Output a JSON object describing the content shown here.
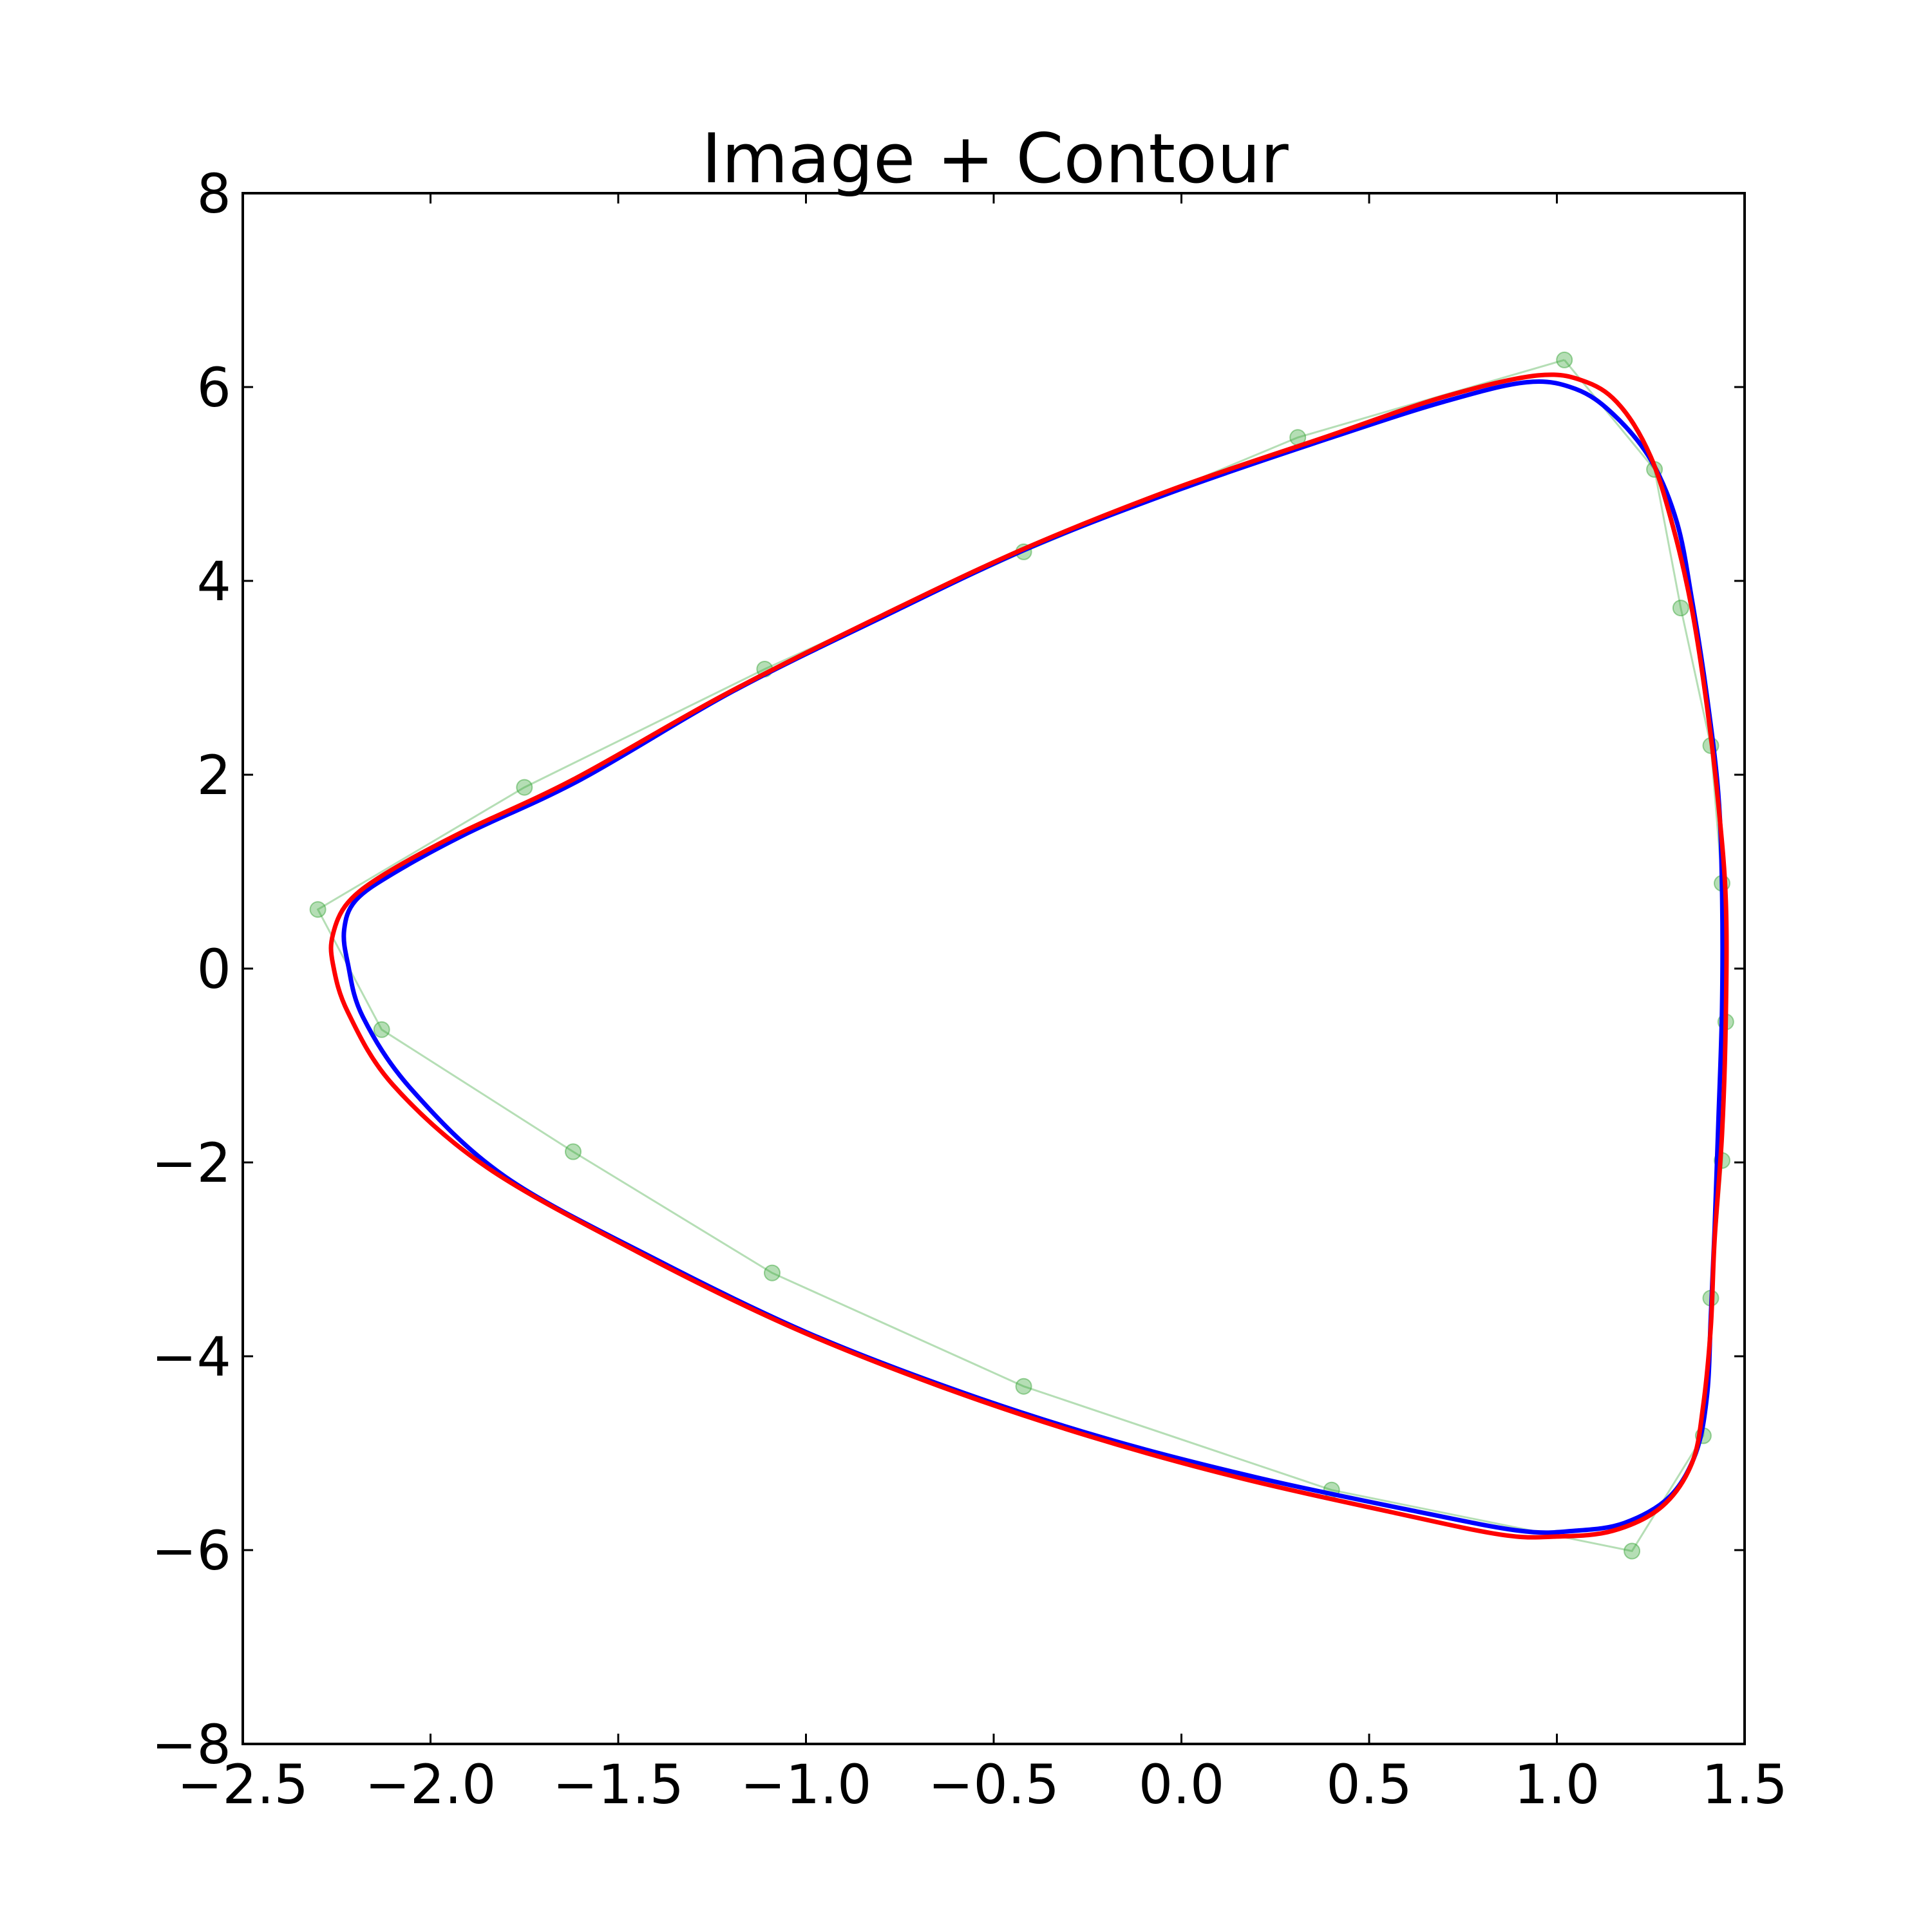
{
  "chart_data": {
    "type": "line",
    "title": "Image + Contour",
    "xlabel": "",
    "ylabel": "",
    "xlim": [
      -2.5,
      1.5
    ],
    "ylim": [
      -8,
      8
    ],
    "x_ticks": [
      -2.5,
      -2.0,
      -1.5,
      -1.0,
      -0.5,
      0.0,
      0.5,
      1.0,
      1.5
    ],
    "x_tick_labels": [
      "−2.5",
      "−2.0",
      "−1.5",
      "−1.0",
      "−0.5",
      "0.0",
      "0.5",
      "1.0",
      "1.5"
    ],
    "y_ticks": [
      8,
      6,
      4,
      2,
      0,
      -2,
      -4,
      -6,
      -8
    ],
    "y_tick_labels": [
      "8",
      "6",
      "4",
      "2",
      "0",
      "−2",
      "−4",
      "−6",
      "−8"
    ],
    "grid": false,
    "series": [
      {
        "color": "#2ca02c",
        "style": "polyline-with-markers",
        "closed": true,
        "points": [
          [
            1.02,
            6.28
          ],
          [
            1.26,
            5.15
          ],
          [
            1.33,
            3.72
          ],
          [
            1.41,
            2.3
          ],
          [
            1.44,
            0.88
          ],
          [
            1.45,
            -0.55
          ],
          [
            1.44,
            -1.98
          ],
          [
            1.41,
            -3.4
          ],
          [
            1.39,
            -4.82
          ],
          [
            1.2,
            -6.01
          ],
          [
            0.4,
            -5.38
          ],
          [
            -0.42,
            -4.31
          ],
          [
            -1.09,
            -3.14
          ],
          [
            -1.62,
            -1.89
          ],
          [
            -2.13,
            -0.63
          ],
          [
            -2.3,
            0.61
          ],
          [
            -1.75,
            1.87
          ],
          [
            -1.11,
            3.09
          ],
          [
            -0.42,
            4.3
          ],
          [
            0.31,
            5.48
          ]
        ]
      },
      {
        "color": "#0000ff",
        "style": "smooth-line",
        "closed": true,
        "points": [
          [
            0.92,
            6.05
          ],
          [
            1.05,
            5.98
          ],
          [
            1.15,
            5.72
          ],
          [
            1.25,
            5.25
          ],
          [
            1.32,
            4.6
          ],
          [
            1.36,
            3.8
          ],
          [
            1.4,
            2.8
          ],
          [
            1.43,
            1.8
          ],
          [
            1.44,
            0.8
          ],
          [
            1.44,
            -0.4
          ],
          [
            1.43,
            -1.6
          ],
          [
            1.42,
            -2.7
          ],
          [
            1.41,
            -3.6
          ],
          [
            1.4,
            -4.4
          ],
          [
            1.37,
            -5.0
          ],
          [
            1.3,
            -5.45
          ],
          [
            1.18,
            -5.72
          ],
          [
            1.05,
            -5.8
          ],
          [
            0.9,
            -5.8
          ],
          [
            0.6,
            -5.58
          ],
          [
            0.2,
            -5.25
          ],
          [
            -0.2,
            -4.85
          ],
          [
            -0.6,
            -4.35
          ],
          [
            -1.0,
            -3.75
          ],
          [
            -1.4,
            -3.0
          ],
          [
            -1.8,
            -2.15
          ],
          [
            -2.05,
            -1.25
          ],
          [
            -2.18,
            -0.5
          ],
          [
            -2.22,
            0.05
          ],
          [
            -2.23,
            0.4
          ],
          [
            -2.2,
            0.7
          ],
          [
            -2.1,
            0.98
          ],
          [
            -1.9,
            1.4
          ],
          [
            -1.6,
            1.95
          ],
          [
            -1.2,
            2.85
          ],
          [
            -0.8,
            3.62
          ],
          [
            -0.4,
            4.35
          ],
          [
            0.0,
            4.95
          ],
          [
            0.4,
            5.48
          ],
          [
            0.7,
            5.85
          ]
        ]
      },
      {
        "color": "#ff0000",
        "style": "smooth-line",
        "closed": true,
        "points": [
          [
            0.95,
            6.12
          ],
          [
            1.08,
            6.05
          ],
          [
            1.17,
            5.8
          ],
          [
            1.25,
            5.28
          ],
          [
            1.31,
            4.55
          ],
          [
            1.36,
            3.7
          ],
          [
            1.4,
            2.7
          ],
          [
            1.43,
            1.7
          ],
          [
            1.45,
            0.7
          ],
          [
            1.45,
            -0.5
          ],
          [
            1.44,
            -1.7
          ],
          [
            1.42,
            -2.8
          ],
          [
            1.41,
            -3.7
          ],
          [
            1.39,
            -4.5
          ],
          [
            1.36,
            -5.1
          ],
          [
            1.28,
            -5.55
          ],
          [
            1.15,
            -5.8
          ],
          [
            1.0,
            -5.86
          ],
          [
            0.85,
            -5.84
          ],
          [
            0.55,
            -5.6
          ],
          [
            0.15,
            -5.25
          ],
          [
            -0.25,
            -4.82
          ],
          [
            -0.65,
            -4.3
          ],
          [
            -1.05,
            -3.68
          ],
          [
            -1.45,
            -2.92
          ],
          [
            -1.85,
            -2.05
          ],
          [
            -2.1,
            -1.2
          ],
          [
            -2.22,
            -0.45
          ],
          [
            -2.26,
            0.05
          ],
          [
            -2.26,
            0.35
          ],
          [
            -2.22,
            0.68
          ],
          [
            -2.12,
            0.98
          ],
          [
            -1.92,
            1.4
          ],
          [
            -1.62,
            1.95
          ],
          [
            -1.22,
            2.82
          ],
          [
            -0.82,
            3.6
          ],
          [
            -0.42,
            4.33
          ],
          [
            -0.02,
            4.95
          ],
          [
            0.38,
            5.48
          ],
          [
            0.7,
            5.9
          ]
        ]
      }
    ]
  }
}
